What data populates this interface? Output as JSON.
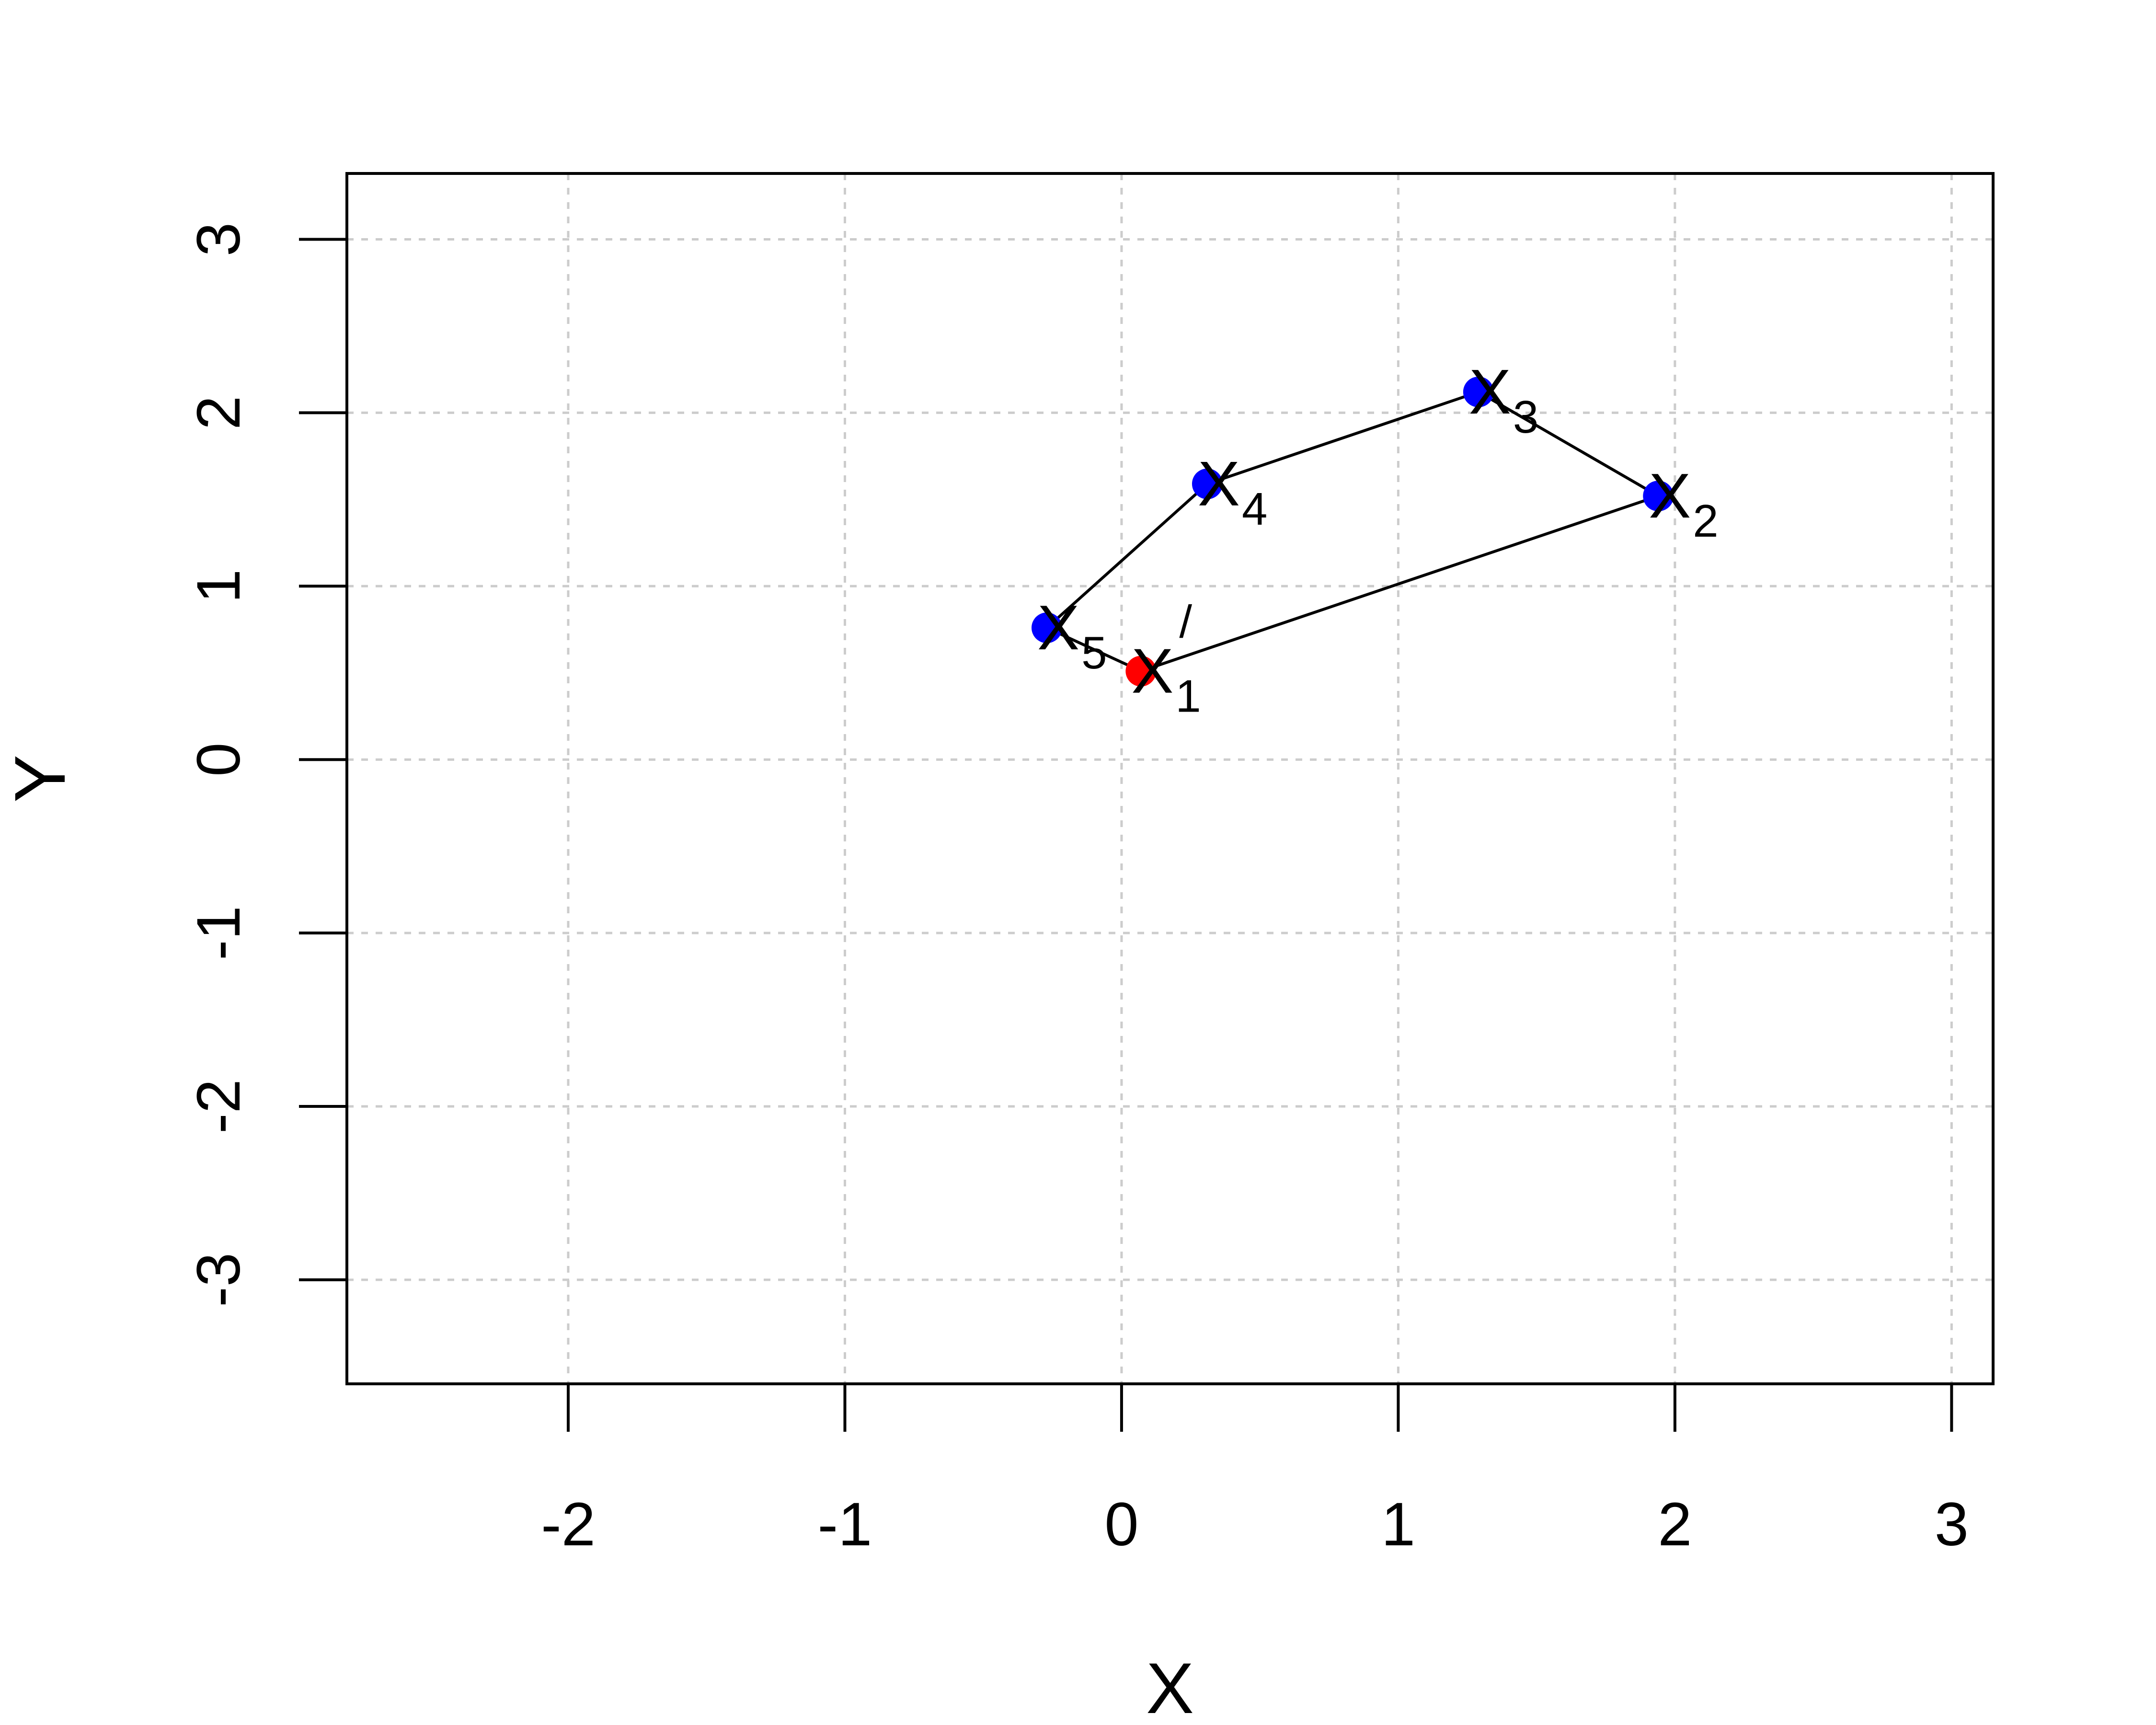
{
  "chart_data": {
    "type": "scatter",
    "title": "",
    "xlabel": "X",
    "ylabel": "Y",
    "xlim": [
      -2.8,
      3.15
    ],
    "ylim": [
      -3.6,
      3.38
    ],
    "x_ticks": [
      -2,
      -1,
      0,
      1,
      2,
      3
    ],
    "y_ticks": [
      -3,
      -2,
      -1,
      0,
      1,
      2,
      3
    ],
    "x_tick_labels": [
      "-2",
      "-1",
      "0",
      "1",
      "2",
      "3"
    ],
    "y_tick_labels": [
      "-3",
      "-2",
      "-1",
      "0",
      "1",
      "2",
      "3"
    ],
    "grid": true,
    "colors": {
      "highlight": "#ff0000",
      "point": "#0000ff",
      "line": "#000000",
      "grid": "#cccccc"
    },
    "points": [
      {
        "label": "X",
        "sub": "1",
        "sup": "/",
        "x": 0.07,
        "y": 0.51,
        "color": "#ff0000"
      },
      {
        "label": "X",
        "sub": "2",
        "sup": "",
        "x": 1.94,
        "y": 1.52,
        "color": "#0000ff"
      },
      {
        "label": "X",
        "sub": "3",
        "sup": "",
        "x": 1.29,
        "y": 2.12,
        "color": "#0000ff"
      },
      {
        "label": "X",
        "sub": "4",
        "sup": "",
        "x": 0.31,
        "y": 1.59,
        "color": "#0000ff"
      },
      {
        "label": "X",
        "sub": "5",
        "sup": "",
        "x": -0.27,
        "y": 0.76,
        "color": "#0000ff"
      }
    ],
    "path_order": [
      0,
      1,
      2,
      3,
      4
    ]
  }
}
